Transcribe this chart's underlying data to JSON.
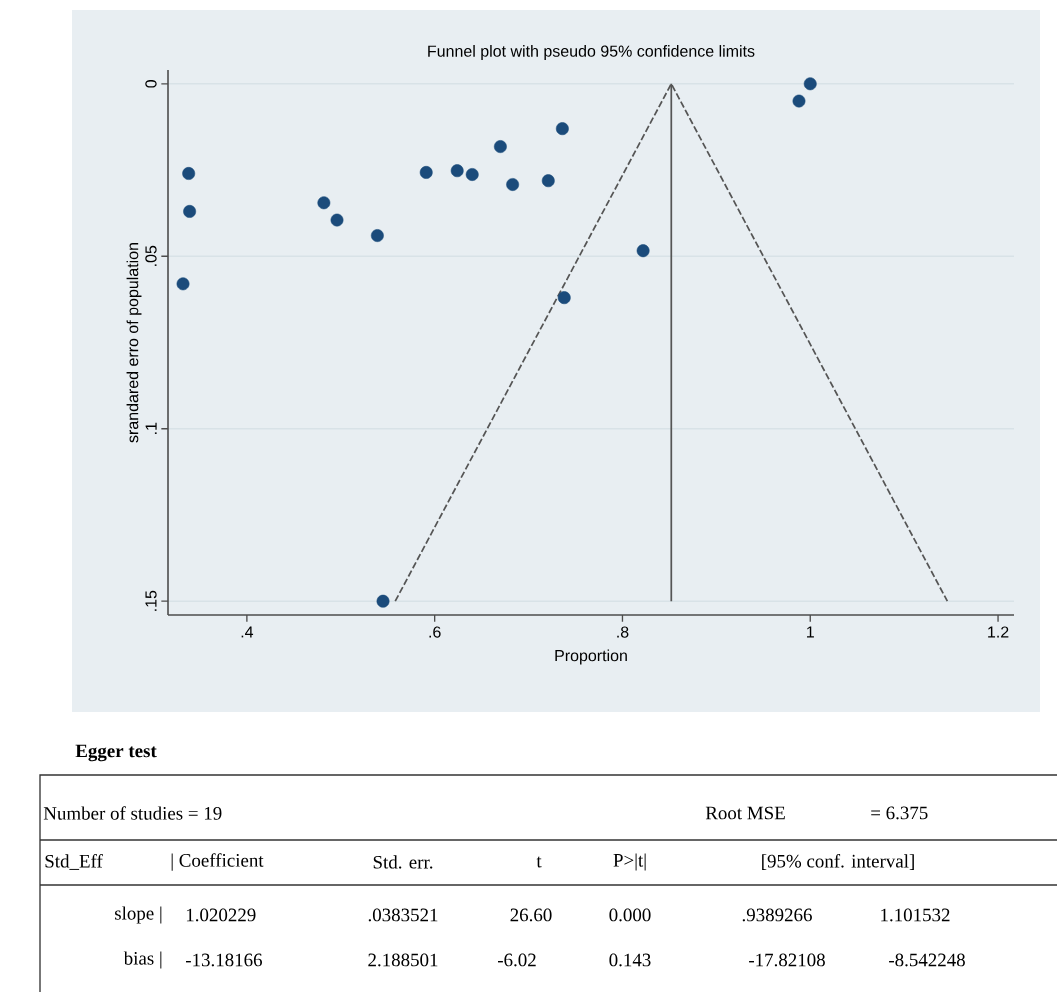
{
  "chart_data": {
    "type": "scatter",
    "title": "Funnel plot with pseudo 95% confidence limits",
    "xlabel": "Proportion",
    "ylabel": "srandared erro of population",
    "series": [
      {
        "color": "#1b4b7b",
        "marker": "circle",
        "x": [
          0.338,
          0.339,
          0.332,
          0.482,
          0.496,
          0.539,
          0.591,
          0.624,
          0.64,
          0.67,
          0.683,
          0.721,
          0.736,
          0.738,
          0.545,
          0.822,
          0.988,
          1.0
        ],
        "values": [
          0.026,
          0.037,
          0.058,
          0.0345,
          0.0395,
          0.044,
          0.0257,
          0.0252,
          0.0263,
          0.0182,
          0.0292,
          0.0281,
          0.013,
          0.062,
          0.15,
          0.0484,
          0.005,
          0.0
        ]
      },
      {
        "type": "line",
        "color": "#555555",
        "marker": "none",
        "line_style": "dashed",
        "x": [
          0.558,
          0.852,
          1.146
        ],
        "values": [
          0.15,
          0.0,
          0.15
        ]
      },
      {
        "type": "line",
        "color": "#555555",
        "marker": "none",
        "line_style": "solid",
        "x": [
          0.852,
          0.852
        ],
        "values": [
          0.0,
          0.15
        ]
      }
    ],
    "xlim": [
      0.316,
      1.217
    ],
    "ylim": [
      0.154,
      -0.004
    ],
    "xticks": [
      {
        "value": 0.4,
        "label": ".4"
      },
      {
        "value": 0.6,
        "label": ".6"
      },
      {
        "value": 0.8,
        "label": ".8"
      },
      {
        "value": 1,
        "label": "1"
      },
      {
        "value": 1.2,
        "label": "1.2"
      }
    ],
    "yticks": [
      {
        "value": 0,
        "label": "0"
      },
      {
        "value": 0.05,
        "label": ".05"
      },
      {
        "value": 0.1,
        "label": ".1"
      },
      {
        "value": 0.15,
        "label": ".15"
      }
    ],
    "grid": "y",
    "annotations": [
      "Egger test",
      "Number of studies = 19",
      "Root MSE",
      "= 6.375",
      "Std_Eff",
      "| Coefficient",
      "Std. err.",
      "t",
      "P>|t|",
      "[95% conf. interval]",
      "slope |",
      "1.020229",
      ".0383521",
      "26.60",
      "0.000",
      ".9389266",
      "1.101532",
      "bias |",
      "-13.18166",
      "2.188501",
      "-6.02",
      "0.143",
      "-17.82108",
      "-8.542248"
    ]
  }
}
